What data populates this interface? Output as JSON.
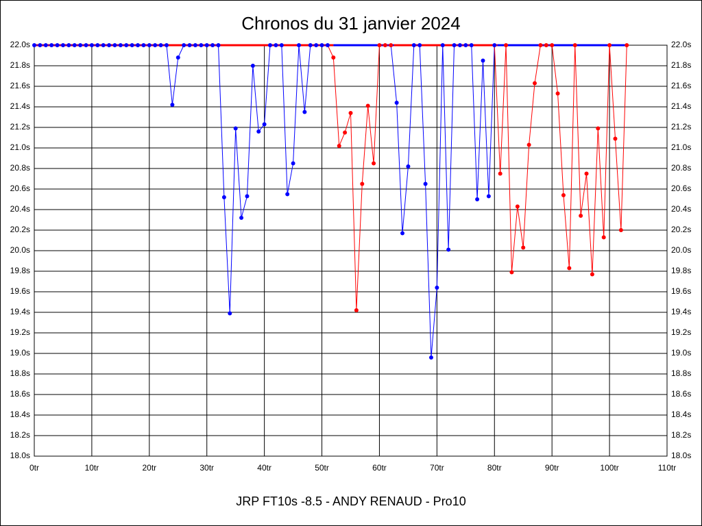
{
  "chart_data": {
    "type": "line",
    "title": "Chronos du 31 janvier 2024",
    "subtitle": "JRP FT10s -8.5 - ANDY RENAUD - Pro10",
    "x": [
      0,
      1,
      2,
      3,
      4,
      5,
      6,
      7,
      8,
      9,
      10,
      11,
      12,
      13,
      14,
      15,
      16,
      17,
      18,
      19,
      20,
      21,
      22,
      23,
      24,
      25,
      26,
      27,
      28,
      29,
      30,
      31,
      32,
      33,
      34,
      35,
      36,
      37,
      38,
      39,
      40,
      41,
      42,
      43,
      44,
      45,
      46,
      47,
      48,
      49,
      50,
      51,
      52,
      53,
      54,
      55,
      56,
      57,
      58,
      59,
      60,
      61,
      62,
      63,
      64,
      65,
      66,
      67,
      68,
      69,
      70,
      71,
      72,
      73,
      74,
      75,
      76,
      77,
      78,
      79,
      80,
      81,
      82,
      83,
      84,
      85,
      86,
      87,
      88,
      89,
      90,
      91,
      92,
      93,
      94,
      95,
      96,
      97,
      98,
      99,
      100,
      101,
      102,
      103
    ],
    "values": [
      22.0,
      22.0,
      22.0,
      22.0,
      22.0,
      22.0,
      22.0,
      22.0,
      22.0,
      22.0,
      22.0,
      22.0,
      22.0,
      22.0,
      22.0,
      22.0,
      22.0,
      22.0,
      22.0,
      22.0,
      22.0,
      22.0,
      22.0,
      22.0,
      21.42,
      21.88,
      22.0,
      22.0,
      22.0,
      22.0,
      22.0,
      22.0,
      22.0,
      20.52,
      19.39,
      21.19,
      20.32,
      20.53,
      21.8,
      21.16,
      21.23,
      22.0,
      22.0,
      22.0,
      20.55,
      20.85,
      22.0,
      21.35,
      22.0,
      22.0,
      22.0,
      22.0,
      21.88,
      21.02,
      21.15,
      21.34,
      19.42,
      20.65,
      21.41,
      20.85,
      22.0,
      22.0,
      22.0,
      21.44,
      20.17,
      20.82,
      22.0,
      22.0,
      20.65,
      18.96,
      19.64,
      22.0,
      20.01,
      22.0,
      22.0,
      22.0,
      22.0,
      20.5,
      21.85,
      20.53,
      22.0,
      20.75,
      22.0,
      19.79,
      20.43,
      20.03,
      21.03,
      21.63,
      22.0,
      22.0,
      22.0,
      21.53,
      20.54,
      19.83,
      22.0,
      20.34,
      20.75,
      19.77,
      21.19,
      20.13,
      22.0,
      21.09,
      20.2,
      22.0
    ],
    "colors": [
      "#0000ff",
      "#0000ff",
      "#0000ff",
      "#0000ff",
      "#0000ff",
      "#0000ff",
      "#0000ff",
      "#0000ff",
      "#0000ff",
      "#0000ff",
      "#0000ff",
      "#0000ff",
      "#0000ff",
      "#0000ff",
      "#0000ff",
      "#0000ff",
      "#0000ff",
      "#0000ff",
      "#0000ff",
      "#0000ff",
      "#0000ff",
      "#0000ff",
      "#0000ff",
      "#0000ff",
      "#0000ff",
      "#0000ff",
      "#0000ff",
      "#0000ff",
      "#0000ff",
      "#0000ff",
      "#0000ff",
      "#0000ff",
      "#0000ff",
      "#0000ff",
      "#0000ff",
      "#0000ff",
      "#0000ff",
      "#0000ff",
      "#0000ff",
      "#0000ff",
      "#0000ff",
      "#0000ff",
      "#0000ff",
      "#0000ff",
      "#0000ff",
      "#0000ff",
      "#0000ff",
      "#0000ff",
      "#0000ff",
      "#0000ff",
      "#0000ff",
      "#0000ff",
      "#ff0000",
      "#ff0000",
      "#ff0000",
      "#ff0000",
      "#ff0000",
      "#ff0000",
      "#ff0000",
      "#ff0000",
      "#ff0000",
      "#ff0000",
      "#ff0000",
      "#0000ff",
      "#0000ff",
      "#0000ff",
      "#0000ff",
      "#0000ff",
      "#0000ff",
      "#0000ff",
      "#0000ff",
      "#0000ff",
      "#0000ff",
      "#0000ff",
      "#0000ff",
      "#0000ff",
      "#0000ff",
      "#0000ff",
      "#0000ff",
      "#0000ff",
      "#0000ff",
      "#ff0000",
      "#ff0000",
      "#ff0000",
      "#ff0000",
      "#ff0000",
      "#ff0000",
      "#ff0000",
      "#ff0000",
      "#ff0000",
      "#ff0000",
      "#ff0000",
      "#ff0000",
      "#ff0000",
      "#ff0000",
      "#ff0000",
      "#ff0000",
      "#ff0000",
      "#ff0000",
      "#ff0000",
      "#ff0000",
      "#ff0000",
      "#ff0000",
      "#ff0000"
    ],
    "top_bands": [
      {
        "from": 0,
        "to": 52,
        "color": "#ff0000"
      },
      {
        "from": 52,
        "to": 62.5,
        "color": "#0000ff"
      },
      {
        "from": 62.5,
        "to": 80.5,
        "color": "#ff0000"
      },
      {
        "from": 80.5,
        "to": 103,
        "color": "#0000ff"
      }
    ],
    "xlim": [
      0,
      110
    ],
    "xticks": [
      {
        "value": 0,
        "label": "0tr"
      },
      {
        "value": 10,
        "label": "10tr"
      },
      {
        "value": 20,
        "label": "20tr"
      },
      {
        "value": 30,
        "label": "30tr"
      },
      {
        "value": 40,
        "label": "40tr"
      },
      {
        "value": 50,
        "label": "50tr"
      },
      {
        "value": 60,
        "label": "60tr"
      },
      {
        "value": 70,
        "label": "70tr"
      },
      {
        "value": 80,
        "label": "80tr"
      },
      {
        "value": 90,
        "label": "90tr"
      },
      {
        "value": 100,
        "label": "100tr"
      },
      {
        "value": 110,
        "label": "110tr"
      }
    ],
    "ylim": [
      18.0,
      22.0
    ],
    "yticks": [
      {
        "value": 18.0,
        "label": "18.0s"
      },
      {
        "value": 18.2,
        "label": "18.2s"
      },
      {
        "value": 18.4,
        "label": "18.4s"
      },
      {
        "value": 18.6,
        "label": "18.6s"
      },
      {
        "value": 18.8,
        "label": "18.8s"
      },
      {
        "value": 19.0,
        "label": "19.0s"
      },
      {
        "value": 19.2,
        "label": "19.2s"
      },
      {
        "value": 19.4,
        "label": "19.4s"
      },
      {
        "value": 19.6,
        "label": "19.6s"
      },
      {
        "value": 19.8,
        "label": "19.8s"
      },
      {
        "value": 20.0,
        "label": "20.0s"
      },
      {
        "value": 20.2,
        "label": "20.2s"
      },
      {
        "value": 20.4,
        "label": "20.4s"
      },
      {
        "value": 20.6,
        "label": "20.6s"
      },
      {
        "value": 20.8,
        "label": "20.8s"
      },
      {
        "value": 21.0,
        "label": "21.0s"
      },
      {
        "value": 21.2,
        "label": "21.2s"
      },
      {
        "value": 21.4,
        "label": "21.4s"
      },
      {
        "value": 21.6,
        "label": "21.6s"
      },
      {
        "value": 21.8,
        "label": "21.8s"
      },
      {
        "value": 22.0,
        "label": "22.0s"
      }
    ],
    "grid": true
  }
}
